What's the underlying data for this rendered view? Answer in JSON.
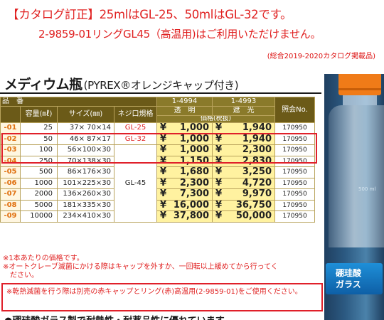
{
  "notice": {
    "line1": "【カタログ訂正】25mlはGL-25、50mlはGL-32です。",
    "line2": "2-9859-01リングGL45（高温用)はご利用いただけません。",
    "line3": "(総合2019-2020カタログ掲載品)"
  },
  "heading": {
    "main": "メディウム瓶",
    "sub": "(PYREX®オレンジキャップ付き)"
  },
  "table": {
    "headers": {
      "hinban": "品　番",
      "capacity": "容量(㎖)",
      "size": "サイズ(㎜)",
      "neck": "ネジ口規格",
      "code_clear": "1-4994",
      "code_shade": "1-4993",
      "clear": "透　明",
      "shade": "遮　光",
      "price": "価格(税抜)",
      "catalog": "照会No."
    },
    "rows": [
      {
        "no": "-01",
        "cap": "25",
        "size": "37× 70×14",
        "neck": "GL-25",
        "p1": "1,000",
        "p2": "1,940",
        "cat": "170950"
      },
      {
        "no": "-02",
        "cap": "50",
        "size": "46× 87×17",
        "neck": "GL-32",
        "p1": "1,000",
        "p2": "1,940",
        "cat": "170950"
      },
      {
        "no": "-03",
        "cap": "100",
        "size": "56×100×30",
        "neck": "",
        "p1": "1,000",
        "p2": "2,300",
        "cat": "170950"
      },
      {
        "no": "-04",
        "cap": "250",
        "size": "70×138×30",
        "neck": "",
        "p1": "1,150",
        "p2": "2,830",
        "cat": "170950"
      },
      {
        "no": "-05",
        "cap": "500",
        "size": "86×176×30",
        "neck": "GL-45",
        "p1": "1,680",
        "p2": "3,250",
        "cat": "170950"
      },
      {
        "no": "-06",
        "cap": "1000",
        "size": "101×225×30",
        "neck": "",
        "p1": "2,300",
        "p2": "4,720",
        "cat": "170950"
      },
      {
        "no": "-07",
        "cap": "2000",
        "size": "136×260×30",
        "neck": "",
        "p1": "7,300",
        "p2": "9,970",
        "cat": "170950"
      },
      {
        "no": "-08",
        "cap": "5000",
        "size": "181×335×30",
        "neck": "",
        "p1": "16,000",
        "p2": "36,750",
        "cat": "170950"
      },
      {
        "no": "-09",
        "cap": "10000",
        "size": "234×410×30",
        "neck": "",
        "p1": "37,800",
        "p2": "50,000",
        "cat": "170950"
      }
    ],
    "yen": "¥"
  },
  "notes": {
    "n1": "※1本あたりの価格です。",
    "n2": "※オートクレーブ滅菌にかける際はキャップを外すか、一回転以上緩めてから行ってく",
    "n3": "ださい。",
    "boxed": "※乾熱滅菌を行う際は別売の赤キャップとリング(赤)高温用(2-9859-01)をご使用ください。"
  },
  "bottom": "●硼珪酸ガラス製で耐熱性・耐薬品性に優れています。",
  "photo": {
    "label": "500 ml",
    "badge": "硼珪酸\nガラス"
  },
  "colors": {
    "alert": "#e02020",
    "header_bg": "#6b5a18",
    "price_bg": "#fff2a0",
    "cap_orange": "#f07b18"
  }
}
